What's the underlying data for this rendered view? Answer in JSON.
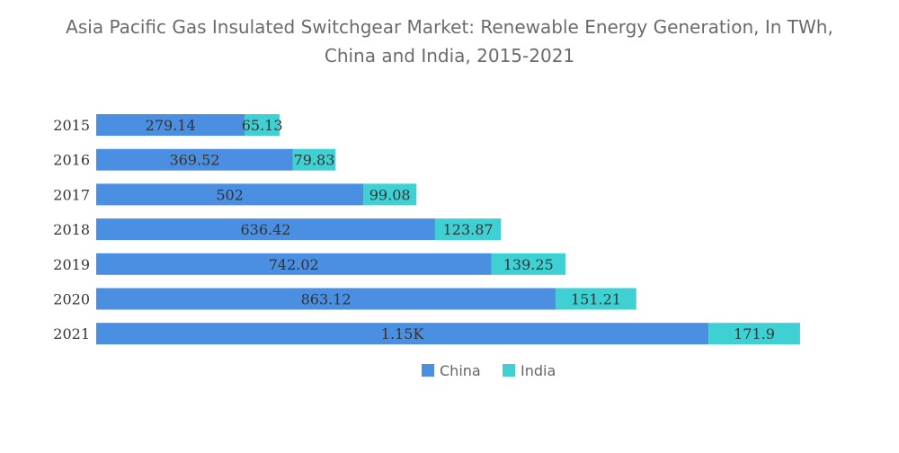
{
  "chart_data": {
    "type": "bar",
    "orientation": "horizontal",
    "stacked": true,
    "title": "Asia Pacific Gas Insulated Switchgear Market: Renewable Energy Generation, In TWh,\nChina and India, 2015-2021",
    "categories": [
      "2015",
      "2016",
      "2017",
      "2018",
      "2019",
      "2020",
      "2021"
    ],
    "series": [
      {
        "name": "China",
        "color": "#4a8fe2",
        "values": [
          279.14,
          369.52,
          502,
          636.42,
          742.02,
          863.12,
          1150
        ],
        "labels": [
          "279.14",
          "369.52",
          "502",
          "636.42",
          "742.02",
          "863.12",
          "1.15K"
        ]
      },
      {
        "name": "India",
        "color": "#3fd0d4",
        "values": [
          65.13,
          79.83,
          99.08,
          123.87,
          139.25,
          151.21,
          171.9
        ],
        "labels": [
          "65.13",
          "79.83",
          "99.08",
          "123.87",
          "139.25",
          "151.21",
          "171.9"
        ]
      }
    ],
    "xlim": [
      0,
      1322
    ],
    "grid": false,
    "legend_position": "bottom"
  }
}
